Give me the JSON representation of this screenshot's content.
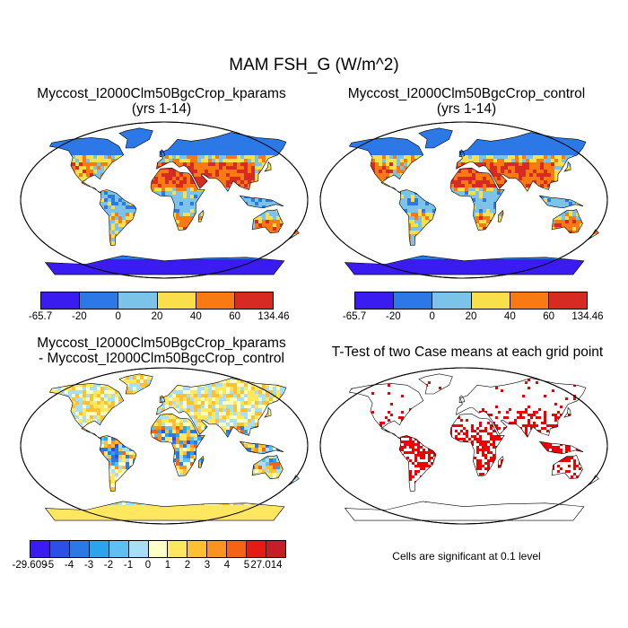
{
  "main_title": "MAM FSH_G (W/m^2)",
  "panels": [
    {
      "title_line1": "Myccost_I2000Clm50BgcCrop_kparams",
      "title_line2": "(yrs 1-14)",
      "colorbar": {
        "labels": [
          "-65.7",
          "-20",
          "0",
          "20",
          "40",
          "60",
          "134.46"
        ],
        "colors": [
          "#3a1bf0",
          "#2c78e6",
          "#7cc3ea",
          "#f9e04a",
          "#f97a12",
          "#d62a22"
        ]
      }
    },
    {
      "title_line1": "Myccost_I2000Clm50BgcCrop_control",
      "title_line2": "(yrs 1-14)",
      "colorbar": {
        "labels": [
          "-65.7",
          "-20",
          "0",
          "20",
          "40",
          "60",
          "134.46"
        ],
        "colors": [
          "#3a1bf0",
          "#2c78e6",
          "#7cc3ea",
          "#f9e04a",
          "#f97a12",
          "#d62a22"
        ]
      }
    },
    {
      "title_line1": "Myccost_I2000Clm50BgcCrop_kparams",
      "title_line2": "- Myccost_I2000Clm50BgcCrop_control",
      "colorbar": {
        "labels": [
          "-29.609",
          "-5",
          "-4",
          "-3",
          "-2",
          "-1",
          "0",
          "1",
          "2",
          "3",
          "4",
          "5",
          "27.014"
        ],
        "colors": [
          "#3a1bf0",
          "#2c4fe8",
          "#2c78e6",
          "#2ca4ec",
          "#5ec0f0",
          "#a8dff6",
          "#ffffc8",
          "#ffe860",
          "#fcc030",
          "#f99420",
          "#f56414",
          "#e41c14",
          "#c41f26"
        ]
      }
    },
    {
      "title_line1": "T-Test of two Case means at each grid point",
      "note": "Cells are significant at 0.1 level",
      "sig_color": "#ee0000"
    }
  ]
}
